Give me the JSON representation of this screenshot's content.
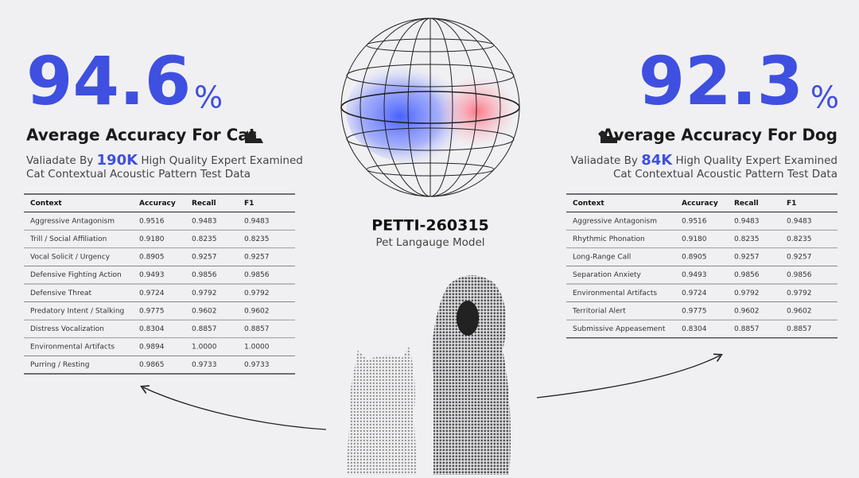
{
  "left": {
    "stat": "94.6",
    "unit": "%",
    "heading": "Average Accuracy For Cat",
    "sub_prefix": "Valiadate By",
    "sub_count": "190K",
    "sub_rest": "High Quality Expert Examined",
    "sub_line2": "Cat Contextual Acoustic Pattern Test Data",
    "table": {
      "header": [
        "Context",
        "Accuracy",
        "Recall",
        "F1"
      ],
      "rows": [
        [
          "Aggressive Antagonism",
          "0.9516",
          "0.9483",
          "0.9483"
        ],
        [
          "Trill / Social Affiliation",
          "0.9180",
          "0.8235",
          "0.8235"
        ],
        [
          "Vocal Solicit / Urgency",
          "0.8905",
          "0.9257",
          "0.9257"
        ],
        [
          "Defensive Fighting Action",
          "0.9493",
          "0.9856",
          "0.9856"
        ],
        [
          "Defensive Threat",
          "0.9724",
          "0.9792",
          "0.9792"
        ],
        [
          "Predatory Intent / Stalking",
          "0.9775",
          "0.9602",
          "0.9602"
        ],
        [
          "Distress Vocalization",
          "0.8304",
          "0.8857",
          "0.8857"
        ],
        [
          "Environmental Artifacts",
          "0.9894",
          "1.0000",
          "1.0000"
        ],
        [
          "Purring / Resting",
          "0.9865",
          "0.9733",
          "0.9733"
        ]
      ]
    }
  },
  "right": {
    "stat": "92.3",
    "unit": "%",
    "heading": "Average Accuracy For Dog",
    "sub_prefix": "Valiadate By",
    "sub_count": "84K",
    "sub_rest": "High Quality Expert Examined",
    "sub_line2": "Cat Contextual Acoustic Pattern Test Data",
    "table": {
      "header": [
        "Context",
        "Accuracy",
        "Recall",
        "F1"
      ],
      "rows": [
        [
          "Aggressive Antagonism",
          "0.9516",
          "0.9483",
          "0.9483"
        ],
        [
          "Rhythmic Phonation",
          "0.9180",
          "0.8235",
          "0.8235"
        ],
        [
          "Long-Range Call",
          "0.8905",
          "0.9257",
          "0.9257"
        ],
        [
          "Separation Anxiety",
          "0.9493",
          "0.9856",
          "0.9856"
        ],
        [
          "Environmental Artifacts",
          "0.9724",
          "0.9792",
          "0.9792"
        ],
        [
          "Territorial Alert",
          "0.9775",
          "0.9602",
          "0.9602"
        ],
        [
          "Submissive Appeasement",
          "0.8304",
          "0.8857",
          "0.8857"
        ]
      ]
    }
  },
  "center": {
    "model_name": "PETTI-260315",
    "model_desc": "Pet Langauge Model"
  }
}
